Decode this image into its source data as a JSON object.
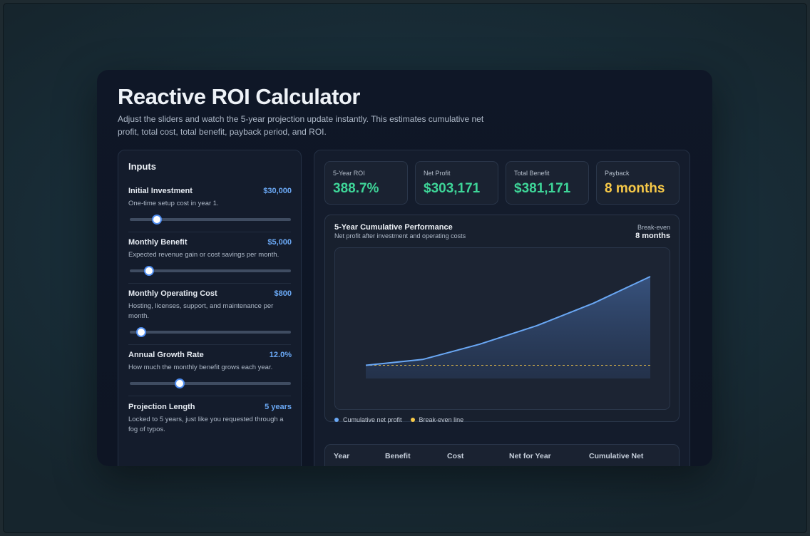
{
  "title": "Reactive ROI Calculator",
  "subtitle": "Adjust the sliders and watch the 5-year projection update instantly. This estimates cumulative net profit, total cost, total benefit, payback period, and ROI.",
  "inputs": {
    "heading": "Inputs",
    "fields": [
      {
        "label": "Initial Investment",
        "value": "$30,000",
        "description": "One-time setup cost in year 1.",
        "slider_fraction": 0.17
      },
      {
        "label": "Monthly Benefit",
        "value": "$5,000",
        "description": "Expected revenue gain or cost savings per month.",
        "slider_fraction": 0.12
      },
      {
        "label": "Monthly Operating Cost",
        "value": "$800",
        "description": "Hosting, licenses, support, and maintenance per month.",
        "slider_fraction": 0.07
      },
      {
        "label": "Annual Growth Rate",
        "value": "12.0%",
        "description": "How much the monthly benefit grows each year.",
        "slider_fraction": 0.31
      },
      {
        "label": "Projection Length",
        "value": "5 years",
        "description": "Locked to 5 years, just like you requested through a fog of typos."
      }
    ]
  },
  "stats": [
    {
      "label": "5-Year ROI",
      "value": "388.7%",
      "color": "#3ed598"
    },
    {
      "label": "Net Profit",
      "value": "$303,171",
      "color": "#3ed598"
    },
    {
      "label": "Total Benefit",
      "value": "$381,171",
      "color": "#3ed598"
    },
    {
      "label": "Payback",
      "value": "8 months",
      "color": "#f7c948"
    }
  ],
  "chart": {
    "title": "5-Year Cumulative Performance",
    "subtitle": "Net profit after investment and operating costs",
    "breakeven_label": "Break-even",
    "breakeven_value": "8 months",
    "legend": [
      {
        "label": "Cumulative net profit",
        "color": "#6aa8f5"
      },
      {
        "label": "Break-even line",
        "color": "#f7c948"
      }
    ]
  },
  "chart_data": {
    "type": "area",
    "title": "5-Year Cumulative Performance",
    "x": [
      0,
      1,
      2,
      3,
      4,
      5
    ],
    "series": [
      {
        "name": "Cumulative net profit",
        "values": [
          0,
          20000,
          72000,
          135000,
          212000,
          303171
        ]
      },
      {
        "name": "Break-even line",
        "values": [
          0,
          0,
          0,
          0,
          0,
          0
        ]
      }
    ],
    "ylim": [
      -45000,
      303171
    ],
    "grid": false,
    "legend_position": "bottom-left"
  },
  "table": {
    "headers": [
      "Year",
      "Benefit",
      "Cost",
      "Net for Year",
      "Cumulative Net"
    ]
  }
}
